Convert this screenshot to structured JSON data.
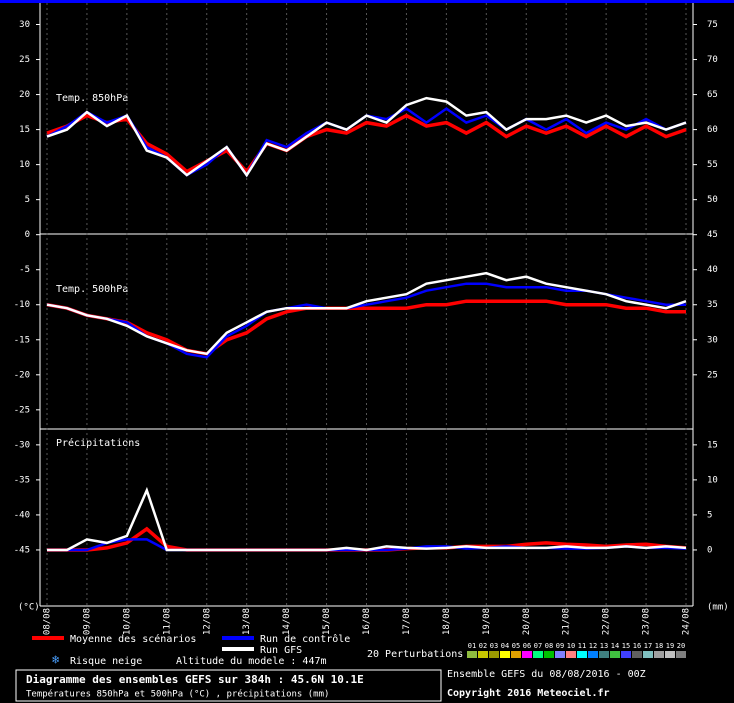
{
  "chart_data": {
    "type": "line",
    "title": "Diagramme des ensembles GEFS sur 384h : 45.6N 10.1E",
    "subtitle": "Températures 850hPa et 500hPa (°C) , précipitations (mm)",
    "run": "Ensemble GEFS du 08/08/2016 - 00Z",
    "copyright": "Copyright 2016 Meteociel.fr",
    "altitude": "Altitude du modele : 447m",
    "snow": "Risque neige",
    "ylabel": "(°C)",
    "y2label": "(mm)",
    "panels": {
      "t850": "Temp. 850hPa",
      "t500": "Temp. 500hPa",
      "precip": "Précipitations"
    },
    "categories": [
      "08/08",
      "09/08",
      "10/08",
      "11/08",
      "12/08",
      "13/08",
      "14/08",
      "15/08",
      "16/08",
      "17/08",
      "18/08",
      "19/08",
      "20/08",
      "21/08",
      "22/08",
      "23/08",
      "24/08"
    ],
    "ylim": [
      -53,
      31.5
    ],
    "yticks": [
      30,
      25,
      20,
      15,
      10,
      5,
      0,
      -5,
      -10,
      -15,
      -20,
      -25,
      -30,
      -35,
      -40,
      -45
    ],
    "y2lim": [
      -8,
      76.5
    ],
    "y2ticks": [
      75,
      70,
      65,
      60,
      55,
      50,
      45,
      40,
      35,
      30,
      25,
      15,
      10,
      5,
      0
    ],
    "grid": "x",
    "series": [
      {
        "name": "Moyenne des scénarios",
        "color": "#ff0000",
        "t850": [
          14.5,
          15.5,
          17,
          16,
          16.5,
          13,
          11.5,
          9,
          10.5,
          12,
          9,
          13,
          12,
          14,
          15,
          14.5,
          16,
          15.5,
          17,
          15.5,
          16,
          14.5,
          16,
          14,
          15.5,
          14.5,
          15.5,
          14,
          15.5,
          14,
          15.5,
          14,
          15
        ],
        "t500": [
          -10,
          -10.5,
          -11.5,
          -12,
          -12.5,
          -14,
          -15,
          -16.5,
          -17,
          -15,
          -14,
          -12,
          -11,
          -10.5,
          -10.5,
          -10.5,
          -10.5,
          -10.5,
          -10.5,
          -10,
          -10,
          -9.5,
          -9.5,
          -9.5,
          -9.5,
          -9.5,
          -10,
          -10,
          -10,
          -10.5,
          -10.5,
          -11,
          -11
        ],
        "precip": [
          0,
          0,
          0,
          0.3,
          1,
          3,
          0.5,
          0,
          0,
          0,
          0,
          0,
          0,
          0,
          0,
          0,
          0,
          0,
          0.2,
          0.3,
          0.3,
          0.5,
          0.5,
          0.5,
          0.8,
          1,
          0.8,
          0.7,
          0.5,
          0.7,
          0.8,
          0.5,
          0.3
        ]
      },
      {
        "name": "Run de contrôle",
        "color": "#0000ff",
        "t850": [
          14,
          15.5,
          17.5,
          16,
          17,
          12.5,
          11,
          8.5,
          10,
          12.5,
          8.5,
          13.5,
          12.5,
          14.5,
          16,
          15,
          17,
          16.5,
          18,
          16,
          18,
          16,
          17,
          15,
          16.5,
          15,
          16.5,
          14.5,
          16,
          15,
          16.5,
          15,
          16
        ],
        "t500": [
          -10,
          -10.5,
          -11.5,
          -12,
          -12.5,
          -14.5,
          -15.5,
          -17,
          -17.5,
          -14.5,
          -13,
          -11,
          -10.5,
          -10,
          -10.5,
          -10.5,
          -10,
          -9.5,
          -9,
          -8,
          -7.5,
          -7,
          -7,
          -7.5,
          -7.5,
          -7.5,
          -8,
          -8,
          -8.5,
          -9,
          -9.5,
          -10,
          -10
        ],
        "precip": [
          0,
          0,
          0,
          1,
          1.5,
          1.5,
          0,
          0,
          0,
          0,
          0,
          0,
          0,
          0,
          0,
          0,
          0,
          0,
          0.2,
          0.5,
          0.5,
          0.2,
          0.3,
          0.5,
          0.3,
          0.3,
          0.2,
          0.2,
          0.3,
          0.5,
          0.3,
          0.3,
          0.2
        ]
      },
      {
        "name": "Run GFS",
        "color": "#ffffff",
        "t850": [
          14,
          15,
          17.5,
          15.5,
          17,
          12,
          11,
          8.5,
          10.5,
          12.5,
          8.5,
          13,
          12,
          14,
          16,
          15,
          17,
          16,
          18.5,
          19.5,
          19,
          17,
          17.5,
          15,
          16.5,
          16.5,
          17,
          16,
          17,
          15.5,
          16,
          15,
          16
        ],
        "t500": [
          -10,
          -10.5,
          -11.5,
          -12,
          -13,
          -14.5,
          -15.5,
          -16.5,
          -17,
          -14,
          -12.5,
          -11,
          -10.5,
          -10.5,
          -10.5,
          -10.5,
          -9.5,
          -9,
          -8.5,
          -7,
          -6.5,
          -6,
          -5.5,
          -6.5,
          -6,
          -7,
          -7.5,
          -8,
          -8.5,
          -9.5,
          -10,
          -10.5,
          -9.5
        ],
        "precip": [
          0,
          0,
          1.5,
          1,
          2,
          8.5,
          0,
          0,
          0,
          0,
          0,
          0,
          0,
          0,
          0,
          0.3,
          0,
          0.5,
          0.3,
          0.2,
          0.3,
          0.5,
          0.3,
          0.3,
          0.3,
          0.3,
          0.5,
          0.3,
          0.3,
          0.5,
          0.3,
          0.5,
          0.3
        ]
      }
    ],
    "perturbations": {
      "label": "20 Perturbations",
      "items": [
        {
          "label": "01",
          "color": "#8fbc3f"
        },
        {
          "label": "02",
          "color": "#c8c800"
        },
        {
          "label": "03",
          "color": "#9a9a00"
        },
        {
          "label": "04",
          "color": "#ffff00"
        },
        {
          "label": "05",
          "color": "#e0a000"
        },
        {
          "label": "06",
          "color": "#ff00ff"
        },
        {
          "label": "07",
          "color": "#00ff80"
        },
        {
          "label": "08",
          "color": "#00c000"
        },
        {
          "label": "09",
          "color": "#8080ff"
        },
        {
          "label": "10",
          "color": "#ff8080"
        },
        {
          "label": "11",
          "color": "#00ffff"
        },
        {
          "label": "12",
          "color": "#0080ff"
        },
        {
          "label": "13",
          "color": "#408080"
        },
        {
          "label": "14",
          "color": "#40c040"
        },
        {
          "label": "15",
          "color": "#4040ff"
        },
        {
          "label": "16",
          "color": "#606060"
        },
        {
          "label": "17",
          "color": "#80c0c0"
        },
        {
          "label": "18",
          "color": "#a0a0a0"
        },
        {
          "label": "19",
          "color": "#c0c0c0"
        },
        {
          "label": "20",
          "color": "#808080"
        }
      ]
    }
  }
}
